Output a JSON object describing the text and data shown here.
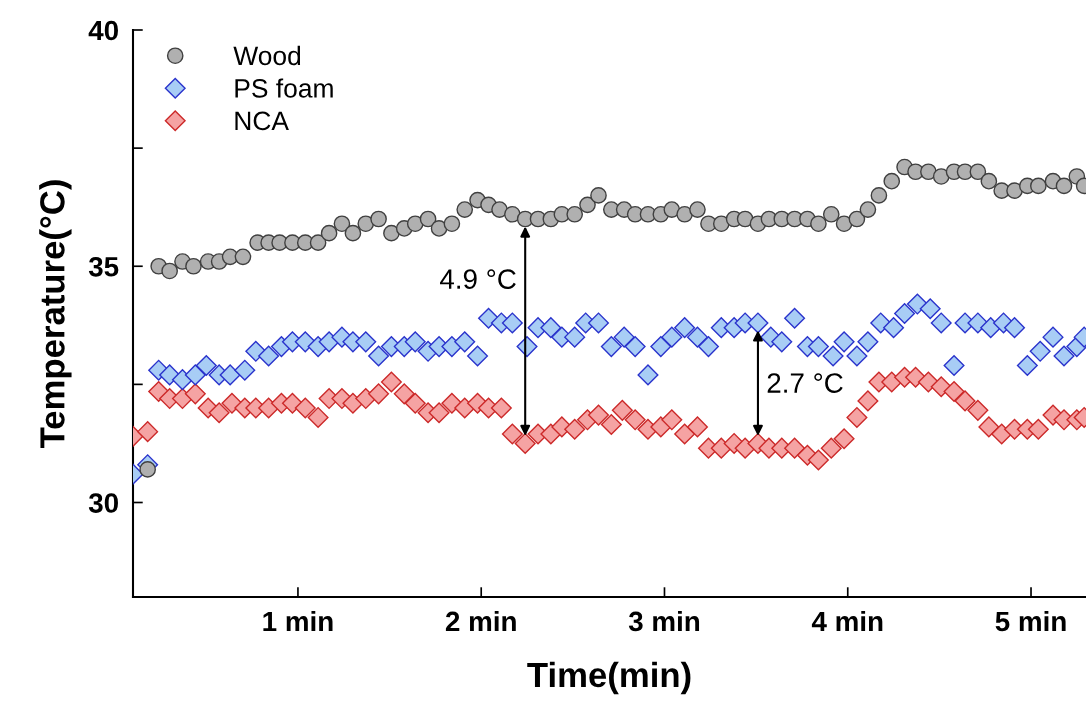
{
  "chart_data": {
    "type": "scatter",
    "xlabel": "Time(min)",
    "ylabel": "Temperature(°C)",
    "xlim": [
      0.1,
      5.3
    ],
    "xticks": [
      {
        "value": 1,
        "label": "1 min"
      },
      {
        "value": 2,
        "label": "2 min"
      },
      {
        "value": 3,
        "label": "3 min"
      },
      {
        "value": 4,
        "label": "4 min"
      },
      {
        "value": 5,
        "label": "5 min"
      }
    ],
    "ylim": [
      28,
      40
    ],
    "yticks": [
      30,
      {
        "value": 32.5,
        "label": null
      },
      35,
      {
        "value": 37.5,
        "label": null
      },
      40
    ],
    "grid": false,
    "legend": "top left",
    "series": [
      {
        "name": "Wood",
        "color": "#b0b0b0",
        "marker": "circle",
        "x": [
          0.18,
          0.24,
          0.3,
          0.37,
          0.43,
          0.51,
          0.57,
          0.63,
          0.7,
          0.78,
          0.84,
          0.9,
          0.97,
          1.04,
          1.11,
          1.17,
          1.24,
          1.3,
          1.37,
          1.44,
          1.51,
          1.58,
          1.64,
          1.71,
          1.77,
          1.84,
          1.91,
          1.98,
          2.04,
          2.1,
          2.17,
          2.24,
          2.31,
          2.38,
          2.44,
          2.51,
          2.58,
          2.64,
          2.71,
          2.78,
          2.84,
          2.91,
          2.98,
          3.04,
          3.11,
          3.18,
          3.24,
          3.31,
          3.38,
          3.44,
          3.51,
          3.57,
          3.64,
          3.71,
          3.78,
          3.84,
          3.91,
          3.98,
          4.05,
          4.11,
          4.17,
          4.24,
          4.31,
          4.37,
          4.44,
          4.51,
          4.58,
          4.64,
          4.71,
          4.77,
          4.84,
          4.91,
          4.98,
          5.04,
          5.12,
          5.18,
          5.25,
          5.29
        ],
        "values": [
          30.7,
          35.0,
          34.9,
          35.1,
          35.0,
          35.1,
          35.1,
          35.2,
          35.2,
          35.5,
          35.5,
          35.5,
          35.5,
          35.5,
          35.5,
          35.7,
          35.9,
          35.7,
          35.9,
          36.0,
          35.7,
          35.8,
          35.9,
          36.0,
          35.8,
          35.9,
          36.2,
          36.4,
          36.3,
          36.2,
          36.1,
          36.0,
          36.0,
          36.0,
          36.1,
          36.1,
          36.3,
          36.5,
          36.2,
          36.2,
          36.1,
          36.1,
          36.1,
          36.2,
          36.1,
          36.2,
          35.9,
          35.9,
          36.0,
          36.0,
          35.9,
          36.0,
          36.0,
          36.0,
          36.0,
          35.9,
          36.1,
          35.9,
          36.0,
          36.2,
          36.5,
          36.8,
          37.1,
          37.0,
          37.0,
          36.9,
          37.0,
          37.0,
          37.0,
          36.8,
          36.6,
          36.6,
          36.7,
          36.7,
          36.8,
          36.7,
          36.9,
          36.7
        ]
      },
      {
        "name": "PS foam",
        "color": "#a8cdf5",
        "marker": "diamond",
        "x": [
          0.1,
          0.18,
          0.24,
          0.3,
          0.37,
          0.44,
          0.5,
          0.57,
          0.63,
          0.71,
          0.77,
          0.84,
          0.91,
          0.97,
          1.04,
          1.11,
          1.17,
          1.24,
          1.3,
          1.37,
          1.44,
          1.51,
          1.58,
          1.64,
          1.71,
          1.77,
          1.84,
          1.91,
          1.98,
          2.04,
          2.11,
          2.17,
          2.25,
          2.31,
          2.38,
          2.44,
          2.51,
          2.57,
          2.64,
          2.71,
          2.78,
          2.84,
          2.91,
          2.98,
          3.04,
          3.11,
          3.18,
          3.24,
          3.31,
          3.38,
          3.44,
          3.51,
          3.58,
          3.64,
          3.71,
          3.78,
          3.84,
          3.92,
          3.98,
          4.05,
          4.11,
          4.18,
          4.25,
          4.31,
          4.38,
          4.45,
          4.51,
          4.58,
          4.64,
          4.71,
          4.78,
          4.85,
          4.91,
          4.98,
          5.05,
          5.12,
          5.18,
          5.25,
          5.29
        ],
        "values": [
          30.6,
          30.8,
          32.8,
          32.7,
          32.6,
          32.7,
          32.9,
          32.7,
          32.7,
          32.8,
          33.2,
          33.1,
          33.3,
          33.4,
          33.4,
          33.3,
          33.4,
          33.5,
          33.4,
          33.4,
          33.1,
          33.3,
          33.3,
          33.4,
          33.2,
          33.3,
          33.3,
          33.4,
          33.1,
          33.9,
          33.8,
          33.8,
          33.3,
          33.7,
          33.7,
          33.5,
          33.5,
          33.8,
          33.8,
          33.3,
          33.5,
          33.3,
          32.7,
          33.3,
          33.5,
          33.7,
          33.5,
          33.3,
          33.7,
          33.7,
          33.8,
          33.8,
          33.5,
          33.4,
          33.9,
          33.3,
          33.3,
          33.1,
          33.4,
          33.1,
          33.4,
          33.8,
          33.7,
          34.0,
          34.2,
          34.1,
          33.8,
          32.9,
          33.8,
          33.8,
          33.7,
          33.8,
          33.7,
          32.9,
          33.2,
          33.5,
          33.1,
          33.3,
          33.5
        ]
      },
      {
        "name": "NCA",
        "color": "#f5a3a3",
        "marker": "diamond",
        "x": [
          0.1,
          0.18,
          0.24,
          0.3,
          0.37,
          0.44,
          0.51,
          0.57,
          0.64,
          0.71,
          0.77,
          0.84,
          0.91,
          0.97,
          1.04,
          1.11,
          1.17,
          1.24,
          1.3,
          1.37,
          1.44,
          1.51,
          1.58,
          1.64,
          1.71,
          1.77,
          1.84,
          1.91,
          1.98,
          2.04,
          2.11,
          2.17,
          2.24,
          2.31,
          2.38,
          2.44,
          2.51,
          2.58,
          2.64,
          2.71,
          2.77,
          2.84,
          2.91,
          2.98,
          3.04,
          3.11,
          3.18,
          3.24,
          3.31,
          3.38,
          3.44,
          3.51,
          3.57,
          3.64,
          3.71,
          3.78,
          3.84,
          3.91,
          3.98,
          4.05,
          4.11,
          4.17,
          4.24,
          4.31,
          4.37,
          4.44,
          4.51,
          4.58,
          4.64,
          4.71,
          4.77,
          4.84,
          4.91,
          4.98,
          5.04,
          5.12,
          5.18,
          5.25,
          5.29
        ],
        "values": [
          31.4,
          31.5,
          32.35,
          32.2,
          32.2,
          32.3,
          32.0,
          31.9,
          32.1,
          32.0,
          32.0,
          32.0,
          32.1,
          32.1,
          32.0,
          31.8,
          32.2,
          32.2,
          32.1,
          32.2,
          32.3,
          32.55,
          32.3,
          32.1,
          31.9,
          31.9,
          32.1,
          32.0,
          32.1,
          32.0,
          32.0,
          31.45,
          31.25,
          31.45,
          31.45,
          31.6,
          31.55,
          31.75,
          31.85,
          31.65,
          31.95,
          31.75,
          31.55,
          31.6,
          31.75,
          31.45,
          31.6,
          31.15,
          31.15,
          31.25,
          31.15,
          31.25,
          31.15,
          31.15,
          31.15,
          31.0,
          30.9,
          31.15,
          31.35,
          31.8,
          32.15,
          32.55,
          32.55,
          32.65,
          32.65,
          32.55,
          32.45,
          32.35,
          32.15,
          31.95,
          31.6,
          31.45,
          31.55,
          31.55,
          31.55,
          31.85,
          31.75,
          31.75,
          31.8
        ]
      }
    ],
    "annotations": [
      {
        "text": "4.9 °C",
        "x": 2.24,
        "y": 36.0
      },
      {
        "text": "2.7 °C",
        "x": 3.51,
        "y": 33.8
      }
    ]
  }
}
